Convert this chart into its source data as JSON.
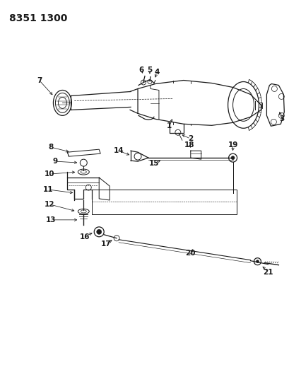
{
  "title": "8351 1300",
  "bg_color": "#ffffff",
  "line_color": "#1a1a1a",
  "title_fontsize": 10,
  "fig_width": 4.1,
  "fig_height": 5.33,
  "dpi": 100
}
